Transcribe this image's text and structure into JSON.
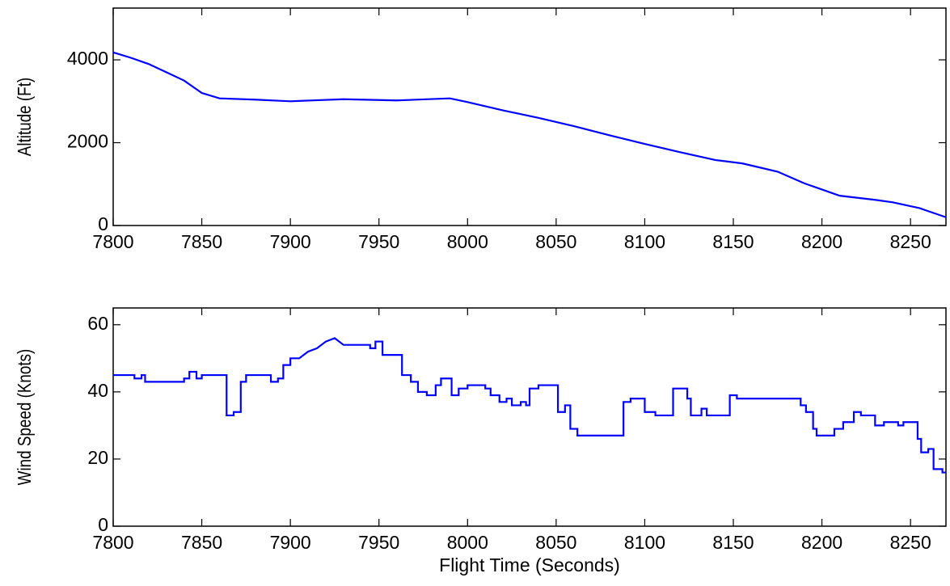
{
  "chart_data": [
    {
      "type": "line",
      "y_label": "Altitude (Ft)",
      "x": [
        7800,
        7810,
        7820,
        7830,
        7840,
        7850,
        7860,
        7880,
        7900,
        7930,
        7960,
        7990,
        8000,
        8020,
        8040,
        8060,
        8080,
        8100,
        8120,
        8140,
        8155,
        8175,
        8190,
        8200,
        8210,
        8230,
        8240,
        8255,
        8270
      ],
      "series": [
        {
          "color": "#0000ff",
          "values": [
            4180,
            4050,
            3900,
            3700,
            3500,
            3200,
            3070,
            3040,
            3000,
            3050,
            3020,
            3070,
            2980,
            2780,
            2600,
            2400,
            2180,
            1970,
            1770,
            1580,
            1500,
            1300,
            1020,
            870,
            720,
            620,
            560,
            420,
            200
          ]
        }
      ],
      "xlim": [
        7800,
        8270
      ],
      "xticks": [
        7800,
        7850,
        7900,
        7950,
        8000,
        8050,
        8100,
        8150,
        8200,
        8250
      ],
      "ylim": [
        0,
        5250
      ],
      "yticks": [
        0,
        2000,
        4000
      ]
    },
    {
      "type": "line",
      "y_label": "Wind Speed (Knots)",
      "x_label": "Flight Time (Seconds)",
      "x": [
        7800,
        7812,
        7812,
        7816,
        7816,
        7818,
        7818,
        7840,
        7840,
        7843,
        7843,
        7847,
        7847,
        7850,
        7850,
        7864,
        7864,
        7868,
        7868,
        7872,
        7872,
        7875,
        7875,
        7889,
        7889,
        7893,
        7893,
        7896,
        7896,
        7900,
        7900,
        7905,
        7910,
        7915,
        7920,
        7925,
        7930,
        7945,
        7945,
        7948,
        7948,
        7952,
        7952,
        7963,
        7963,
        7968,
        7968,
        7972,
        7972,
        7977,
        7977,
        7982,
        7982,
        7985,
        7985,
        7991,
        7991,
        7995,
        7995,
        8000,
        8000,
        8010,
        8010,
        8013,
        8013,
        8018,
        8018,
        8022,
        8022,
        8025,
        8025,
        8030,
        8030,
        8033,
        8033,
        8035,
        8035,
        8040,
        8040,
        8051,
        8051,
        8055,
        8055,
        8058,
        8058,
        8062,
        8062,
        8088,
        8088,
        8092,
        8092,
        8100,
        8100,
        8106,
        8106,
        8116,
        8116,
        8124,
        8124,
        8126,
        8126,
        8132,
        8132,
        8135,
        8135,
        8148,
        8148,
        8152,
        8152,
        8188,
        8188,
        8191,
        8191,
        8195,
        8195,
        8197,
        8197,
        8207,
        8207,
        8212,
        8212,
        8218,
        8218,
        8222,
        8222,
        8230,
        8230,
        8235,
        8235,
        8243,
        8243,
        8246,
        8246,
        8254,
        8254,
        8256,
        8256,
        8260,
        8260,
        8263,
        8263,
        8268,
        8268,
        8270
      ],
      "series": [
        {
          "color": "#0000ff",
          "values": [
            45,
            45,
            44,
            44,
            45,
            45,
            43,
            43,
            44,
            44,
            46,
            46,
            44,
            44,
            45,
            45,
            33,
            33,
            34,
            34,
            43,
            43,
            45,
            45,
            43,
            43,
            44,
            44,
            48,
            48,
            50,
            50,
            52,
            53,
            55,
            56,
            54,
            54,
            53,
            53,
            55,
            55,
            51,
            51,
            45,
            45,
            43,
            43,
            40,
            40,
            39,
            39,
            42,
            42,
            44,
            44,
            39,
            39,
            41,
            41,
            42,
            42,
            41,
            41,
            39,
            39,
            37,
            37,
            38,
            38,
            36,
            36,
            37,
            37,
            36,
            36,
            41,
            41,
            42,
            42,
            34,
            34,
            36,
            36,
            29,
            29,
            27,
            27,
            37,
            37,
            38,
            38,
            34,
            34,
            33,
            33,
            41,
            41,
            38,
            38,
            33,
            33,
            35,
            35,
            33,
            33,
            39,
            39,
            38,
            38,
            36,
            36,
            34,
            34,
            29,
            29,
            27,
            27,
            29,
            29,
            31,
            31,
            34,
            34,
            33,
            33,
            30,
            30,
            31,
            31,
            30,
            30,
            31,
            31,
            26,
            26,
            22,
            22,
            23,
            23,
            17,
            17,
            16,
            16
          ]
        }
      ],
      "xlim": [
        7800,
        8270
      ],
      "xticks": [
        7800,
        7850,
        7900,
        7950,
        8000,
        8050,
        8100,
        8150,
        8200,
        8250
      ],
      "ylim": [
        0,
        65
      ],
      "yticks": [
        0,
        20,
        40,
        60
      ]
    }
  ]
}
